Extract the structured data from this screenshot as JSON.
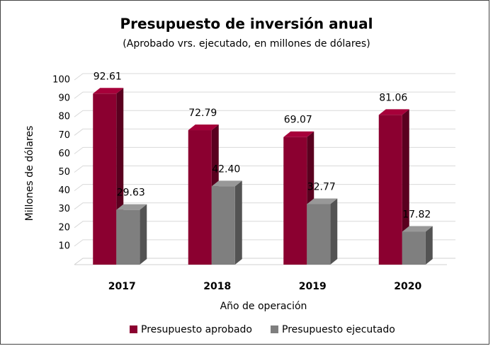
{
  "chart_data": {
    "type": "bar3d",
    "title": "Presupuesto de inversión anual",
    "subtitle": "(Aprobado vrs. ejecutado, en millones de dólares)",
    "x_label": "Año de operación",
    "y_label": "Millones de  dólares",
    "categories": [
      "2017",
      "2018",
      "2019",
      "2020"
    ],
    "series": [
      {
        "name": "Presupuesto aprobado",
        "color": "#8b0030",
        "values": [
          92.61,
          72.79,
          69.07,
          81.06
        ],
        "value_labels": [
          "92.61",
          "72.79",
          "69.07",
          "81.06"
        ]
      },
      {
        "name": "Presupuesto ejecutado",
        "color": "#7f7f7f",
        "values": [
          29.63,
          42.4,
          32.77,
          17.82
        ],
        "value_labels": [
          "29.63",
          "42.40",
          "32.77",
          "17.82"
        ]
      }
    ],
    "ylim": [
      0,
      100
    ],
    "yticks": [
      10,
      20,
      30,
      40,
      50,
      60,
      70,
      80,
      90,
      100
    ],
    "grid": true,
    "legend": "bottom"
  }
}
